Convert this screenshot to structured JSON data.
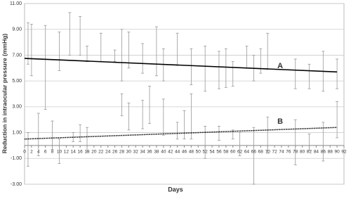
{
  "chart_data": {
    "type": "errorbar",
    "x_label": "Days",
    "y_label": "Reduction in intraocular pressure (mmHg)",
    "xlim": [
      0,
      92
    ],
    "xticks": [
      0,
      2,
      4,
      6,
      8,
      10,
      12,
      14,
      16,
      18,
      20,
      22,
      24,
      26,
      28,
      30,
      32,
      34,
      36,
      38,
      40,
      42,
      44,
      46,
      48,
      50,
      52,
      54,
      56,
      58,
      60,
      62,
      64,
      66,
      68,
      70,
      72,
      74,
      76,
      78,
      80,
      82,
      84,
      86,
      88,
      90,
      92
    ],
    "ylim": [
      -3,
      11
    ],
    "yticks": [
      {
        "value": -3,
        "label": "-3.00"
      },
      {
        "value": -1,
        "label": "-1.00"
      },
      {
        "value": 1,
        "label": "1.00"
      },
      {
        "value": 3,
        "label": "3.00"
      },
      {
        "value": 5,
        "label": "5.00"
      },
      {
        "value": 7,
        "label": "7.00"
      },
      {
        "value": 9,
        "label": "9.00"
      },
      {
        "value": 11,
        "label": "11.00"
      }
    ],
    "grid": true,
    "series": [
      {
        "name": "A",
        "color": "#999999",
        "trend_color": "#000000",
        "trend_style": "solid",
        "x": [
          1,
          2,
          6,
          10,
          13,
          16,
          18,
          22,
          26,
          28,
          30,
          34,
          38,
          40,
          44,
          48,
          52,
          56,
          58,
          60,
          64,
          66,
          68,
          70,
          78,
          82,
          86,
          90
        ],
        "values": [
          7.9,
          7.4,
          6.05,
          7.3,
          8.65,
          8.5,
          7.1,
          7.6,
          6.95,
          7.0,
          7.4,
          6.75,
          7.3,
          6.25,
          7.45,
          6.1,
          5.95,
          5.85,
          6.0,
          5.55,
          6.85,
          6.0,
          6.55,
          7.3,
          5.55,
          5.35,
          5.75,
          5.55
        ],
        "errors": [
          1.6,
          2.0,
          3.25,
          1.5,
          1.65,
          1.5,
          0.6,
          1.1,
          0.45,
          2.0,
          1.4,
          1.15,
          1.9,
          1.25,
          1.25,
          1.4,
          1.75,
          1.45,
          1.5,
          0.95,
          0.85,
          1.0,
          0.95,
          1.4,
          1.15,
          0.95,
          1.55,
          1.15
        ],
        "trend": {
          "x": [
            0,
            90
          ],
          "values": [
            6.75,
            5.7
          ]
        }
      },
      {
        "name": "B",
        "color": "#999999",
        "trend_color": "#000000",
        "trend_style": "dotted",
        "x": [
          1,
          4,
          8,
          10,
          14,
          16,
          18,
          28,
          30,
          34,
          36,
          40,
          44,
          46,
          48,
          52,
          56,
          60,
          62,
          66,
          70,
          78,
          82,
          86,
          90
        ],
        "values": [
          -0.3,
          0.85,
          0.8,
          -0.45,
          0.65,
          0.95,
          0.45,
          3.15,
          2.25,
          2.4,
          3.15,
          2.2,
          1.15,
          1.6,
          2.25,
          0.25,
          0.95,
          0.85,
          0.1,
          -0.8,
          0.8,
          0.25,
          0.25,
          0.3,
          2.0
        ],
        "errors": [
          1.3,
          1.65,
          1.1,
          0.95,
          0.35,
          0.65,
          0.95,
          0.85,
          1.05,
          1.1,
          1.45,
          1.4,
          0.65,
          1.1,
          1.75,
          1.25,
          0.55,
          0.35,
          0.9,
          2.2,
          1.4,
          1.75,
          0.65,
          1.5,
          1.4
        ],
        "trend": {
          "x": [
            0,
            90
          ],
          "values": [
            0.5,
            1.4
          ]
        }
      }
    ]
  }
}
